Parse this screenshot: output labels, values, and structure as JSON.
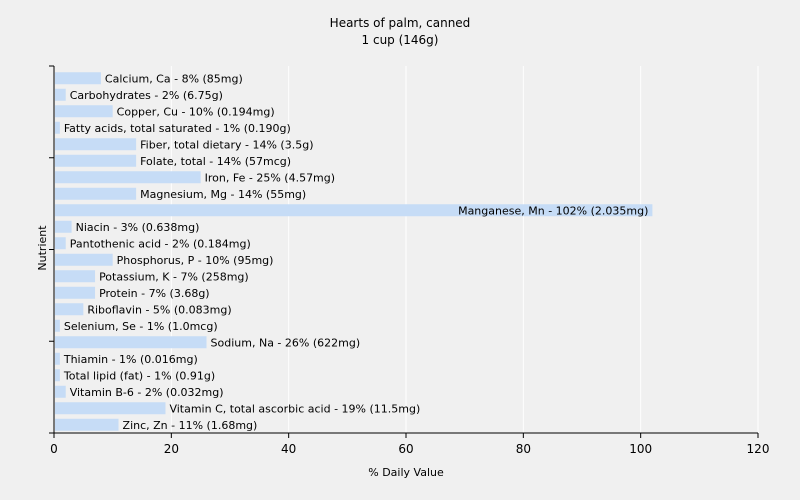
{
  "chart_data": {
    "type": "bar",
    "orientation": "horizontal",
    "title": "Hearts of palm, canned",
    "subtitle": "1 cup (146g)",
    "xlabel": "% Daily Value",
    "ylabel": "Nutrient",
    "xlim": [
      0,
      120
    ],
    "xticks": [
      "0",
      "20",
      "40",
      "60",
      "80",
      "100",
      "120"
    ],
    "grid": true,
    "bar_color": "#c6dcf6",
    "grid_color": "#ffffff",
    "categories": [
      "Calcium, Ca",
      "Carbohydrates",
      "Copper, Cu",
      "Fatty acids, total saturated",
      "Fiber, total dietary",
      "Folate, total",
      "Iron, Fe",
      "Magnesium, Mg",
      "Manganese, Mn",
      "Niacin",
      "Pantothenic acid",
      "Phosphorus, P",
      "Potassium, K",
      "Protein",
      "Riboflavin",
      "Selenium, Se",
      "Sodium, Na",
      "Thiamin",
      "Total lipid (fat)",
      "Vitamin B-6",
      "Vitamin C, total ascorbic acid",
      "Zinc, Zn"
    ],
    "values": [
      8,
      2,
      10,
      1,
      14,
      14,
      25,
      14,
      102,
      3,
      2,
      10,
      7,
      7,
      5,
      1,
      26,
      1,
      1,
      2,
      19,
      11
    ],
    "labels": [
      "Calcium, Ca - 8% (85mg)",
      "Carbohydrates - 2% (6.75g)",
      "Copper, Cu - 10% (0.194mg)",
      "Fatty acids, total saturated - 1% (0.190g)",
      "Fiber, total dietary - 14% (3.5g)",
      "Folate, total - 14% (57mcg)",
      "Iron, Fe - 25% (4.57mg)",
      "Magnesium, Mg - 14% (55mg)",
      "Manganese, Mn - 102% (2.035mg)",
      "Niacin - 3% (0.638mg)",
      "Pantothenic acid - 2% (0.184mg)",
      "Phosphorus, P - 10% (95mg)",
      "Potassium, K - 7% (258mg)",
      "Protein - 7% (3.68g)",
      "Riboflavin - 5% (0.083mg)",
      "Selenium, Se - 1% (1.0mcg)",
      "Sodium, Na - 26% (622mg)",
      "Thiamin - 1% (0.016mg)",
      "Total lipid (fat) - 1% (0.91g)",
      "Vitamin B-6 - 2% (0.032mg)",
      "Vitamin C, total ascorbic acid - 19% (11.5mg)",
      "Zinc, Zn - 11% (1.68mg)"
    ]
  }
}
